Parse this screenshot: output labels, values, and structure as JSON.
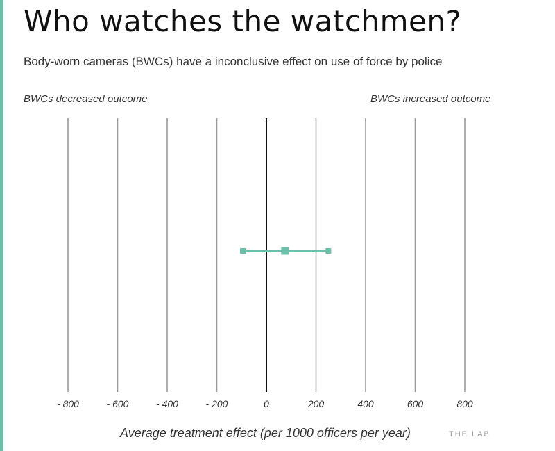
{
  "title": "Who watches the watchmen?",
  "subtitle": "Body-worn cameras (BWCs) have a inconclusive effect on use of force by police",
  "watermark": "THE LAB",
  "colors": {
    "accent": "#6dbfa9",
    "marker": "#6dbfa9",
    "grid": "#9a9a9a",
    "zero_line": "#111111"
  },
  "chart_data": {
    "type": "scatter",
    "title": "Who watches the watchmen?",
    "subtitle": "Body-worn cameras (BWCs) have a inconclusive effect on use of force by police",
    "xlabel": "Average treatment effect (per 1000 officers per year)",
    "ylabel": "",
    "xlim": [
      -800,
      800
    ],
    "grid": true,
    "x_ticks": [
      -800,
      -600,
      -400,
      -200,
      0,
      200,
      400,
      600,
      800
    ],
    "x_tick_labels": [
      "- 800",
      "- 600",
      "- 400",
      "- 200",
      "0",
      "200",
      "400",
      "600",
      "800"
    ],
    "annotations": {
      "left": "BWCs decreased outcome",
      "right": "BWCs increased outcome"
    },
    "points": [
      {
        "estimate": 75,
        "ci_low": -95,
        "ci_high": 250
      }
    ]
  }
}
